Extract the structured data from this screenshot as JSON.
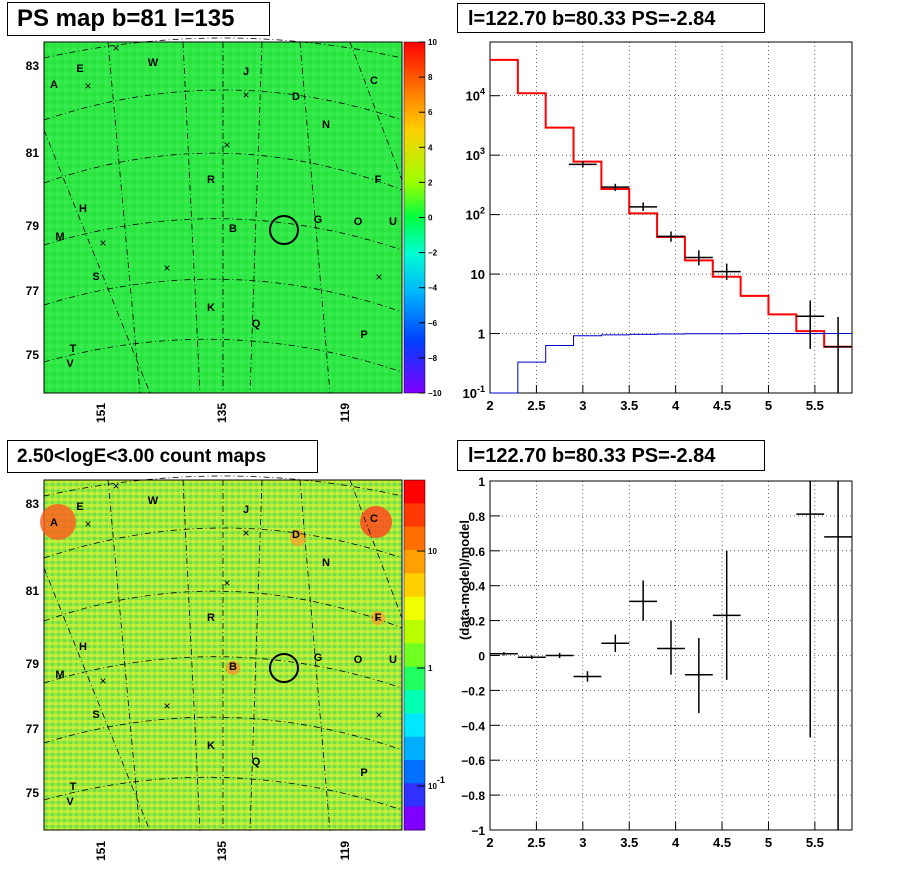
{
  "chart_data": [
    {
      "panel": "top-left",
      "type": "heatmap",
      "title": "PS map b=81 l=135",
      "y_ticks": [
        "83",
        "81",
        "79",
        "77",
        "75"
      ],
      "x_ticks": [
        "151",
        "135",
        "119"
      ],
      "colorbar_ticks": [
        "10",
        "8",
        "6",
        "4",
        "2",
        "0",
        "−2",
        "−4",
        "−6",
        "−8",
        "−10"
      ],
      "zlim": [
        -10,
        10
      ],
      "source_labels": [
        "A",
        "E",
        "W",
        "J",
        "C",
        "D",
        "N",
        "R",
        "F",
        "H",
        "M",
        "B",
        "G",
        "O",
        "U",
        "S",
        "K",
        "Q",
        "P",
        "T",
        "V"
      ]
    },
    {
      "panel": "top-right",
      "type": "line",
      "title": "l=122.70 b=80.33 PS=-2.84",
      "log_y": true,
      "xlim": [
        2,
        5.9
      ],
      "ylim": [
        0.1,
        80000
      ],
      "x_ticks": [
        "2",
        "2.5",
        "3",
        "3.5",
        "4",
        "4.5",
        "5",
        "5.5"
      ],
      "y_ticks": [
        "10^{-1}",
        "1",
        "10",
        "10^{2}",
        "10^{3}",
        "10^{4}"
      ],
      "bin_edges": [
        2.0,
        2.3,
        2.6,
        2.9,
        3.2,
        3.5,
        3.8,
        4.1,
        4.4,
        4.7,
        5.0,
        5.3,
        5.6,
        5.9
      ],
      "series": [
        {
          "color": "#ff0000",
          "values": [
            40000,
            11000,
            2900,
            780,
            270,
            105,
            42,
            17,
            9,
            4.3,
            2.1,
            1.1,
            0.6
          ]
        },
        {
          "color": "#0000cc",
          "values": [
            0.04,
            0.33,
            0.63,
            0.92,
            0.95,
            0.97,
            0.98,
            0.99,
            0.99,
            1.0,
            1.0,
            1.0,
            1.0
          ]
        }
      ],
      "data_points": {
        "color": "#000000",
        "x": [
          3.0,
          3.35,
          3.65,
          3.95,
          4.25,
          4.55,
          5.45,
          5.75
        ],
        "y": [
          700,
          290,
          135,
          43,
          19,
          11,
          1.95,
          0.6
        ],
        "ylow": [
          620,
          250,
          115,
          35,
          14,
          8,
          0.55,
          0.05
        ],
        "yhigh": [
          790,
          330,
          160,
          52,
          25,
          15,
          3.6,
          1.9
        ]
      }
    },
    {
      "panel": "bottom-left",
      "type": "heatmap",
      "title": "2.50<logE<3.00 count maps",
      "y_ticks": [
        "83",
        "81",
        "79",
        "77",
        "75"
      ],
      "x_ticks": [
        "151",
        "135",
        "119"
      ],
      "colorbar_ticks": [
        "10",
        "1",
        "10^{-1}"
      ],
      "source_labels": [
        "A",
        "E",
        "W",
        "J",
        "C",
        "D",
        "N",
        "R",
        "F",
        "H",
        "M",
        "B",
        "G",
        "O",
        "U",
        "S",
        "K",
        "Q",
        "P",
        "T",
        "V"
      ]
    },
    {
      "panel": "bottom-right",
      "type": "scatter",
      "title": "l=122.70 b=80.33 PS=-2.84",
      "ylabel": "(data-model)/model",
      "xlim": [
        2,
        5.9
      ],
      "ylim": [
        -1,
        1
      ],
      "x_ticks": [
        "2",
        "2.5",
        "3",
        "3.5",
        "4",
        "4.5",
        "5",
        "5.5"
      ],
      "y_ticks": [
        "1",
        "0.8",
        "0.6",
        "0.4",
        "0.2",
        "0",
        "−0.2",
        "−0.4",
        "−0.6",
        "−0.8",
        "−1"
      ],
      "x": [
        2.15,
        2.45,
        2.75,
        3.05,
        3.35,
        3.65,
        3.95,
        4.25,
        4.55,
        5.45,
        5.75
      ],
      "y": [
        0.01,
        -0.01,
        0.0,
        -0.12,
        0.07,
        0.31,
        0.04,
        -0.11,
        0.23,
        0.81,
        0.68
      ],
      "ylow": [
        0.0,
        -0.02,
        -0.015,
        -0.15,
        0.02,
        0.2,
        -0.11,
        -0.33,
        -0.14,
        -0.47,
        -1.0
      ],
      "yhigh": [
        0.02,
        0.0,
        0.015,
        -0.09,
        0.12,
        0.43,
        0.2,
        0.1,
        0.6,
        1.0,
        1.0
      ],
      "x_halfwidth": 0.15
    }
  ]
}
